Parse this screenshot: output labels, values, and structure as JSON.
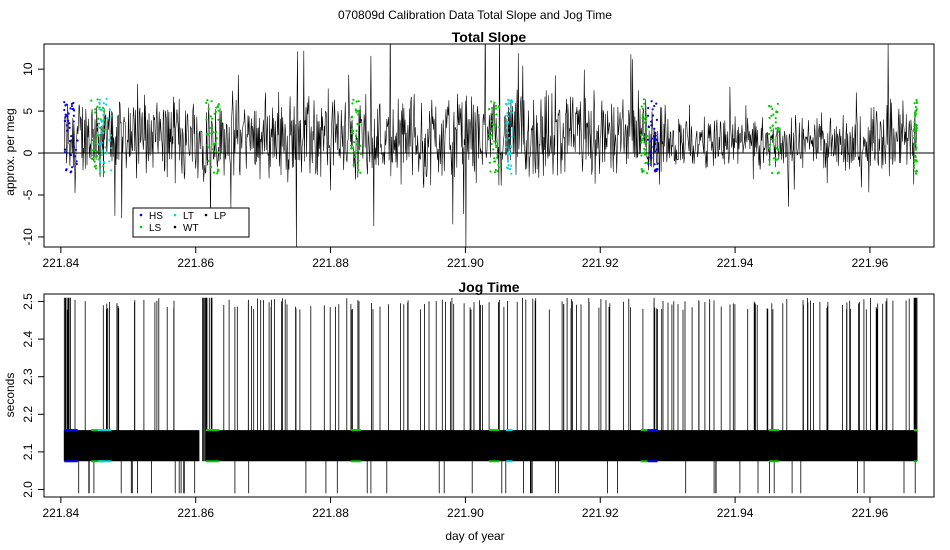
{
  "figure_title": "070809d   Calibration Data Total Slope and Jog Time",
  "chart_data": [
    {
      "type": "line",
      "title": "Total Slope",
      "xlabel": "",
      "ylabel": "approx. per meg",
      "xlim": [
        221.8375,
        221.9695
      ],
      "ylim": [
        -11.2,
        13
      ],
      "x_ticks": [
        "221.84",
        "221.86",
        "221.88",
        "221.90",
        "221.92",
        "221.94",
        "221.96"
      ],
      "y_ticks": [
        "-10",
        "-5",
        "0",
        "5",
        "10"
      ],
      "x_range_data": [
        221.8405,
        221.967
      ],
      "reference_line_y": 0,
      "series": [
        {
          "name": "WT",
          "color": "#000000",
          "approx_mean": 2,
          "approx_spread": 4
        },
        {
          "name": "HS",
          "color": "#0000ff",
          "x_ranges": [
            [
              221.8405,
              221.8425
            ],
            [
              221.927,
              221.9285
            ]
          ]
        },
        {
          "name": "LS",
          "color": "#00cc00",
          "x_ranges": [
            [
              221.8445,
              221.8465
            ],
            [
              221.8615,
              221.8635
            ],
            [
              221.883,
              221.8845
            ],
            [
              221.9035,
              221.905
            ],
            [
              221.926,
              221.927
            ],
            [
              221.945,
              221.9465
            ],
            [
              221.9665,
              221.967
            ]
          ]
        },
        {
          "name": "LT",
          "color": "#00dddd",
          "x_ranges": [
            [
              221.8455,
              221.8475
            ],
            [
              221.906,
              221.907
            ]
          ]
        },
        {
          "name": "LP",
          "color": "#000000"
        }
      ],
      "legend": {
        "position": "bottom-left",
        "entries": [
          {
            "label": "HS",
            "color": "#0000ff"
          },
          {
            "label": "LT",
            "color": "#00dddd"
          },
          {
            "label": "LP",
            "color": "#000000"
          },
          {
            "label": "LS",
            "color": "#00cc00"
          },
          {
            "label": "WT",
            "color": "#000000"
          }
        ]
      }
    },
    {
      "type": "line",
      "title": "Jog Time",
      "xlabel": "day of year",
      "ylabel": "seconds",
      "xlim": [
        221.8375,
        221.9695
      ],
      "ylim": [
        1.98,
        2.52
      ],
      "x_ticks": [
        "221.84",
        "221.86",
        "221.88",
        "221.90",
        "221.92",
        "221.94",
        "221.96"
      ],
      "y_ticks": [
        "2.0",
        "2.1",
        "2.2",
        "2.3",
        "2.4",
        "2.5"
      ],
      "band": {
        "low": 2.075,
        "high": 2.158
      },
      "spike_high": 2.51,
      "spike_low": 1.99,
      "gap_x": [
        221.8605,
        221.8615
      ],
      "series": [
        {
          "name": "WT",
          "color": "#000000"
        }
      ]
    }
  ]
}
